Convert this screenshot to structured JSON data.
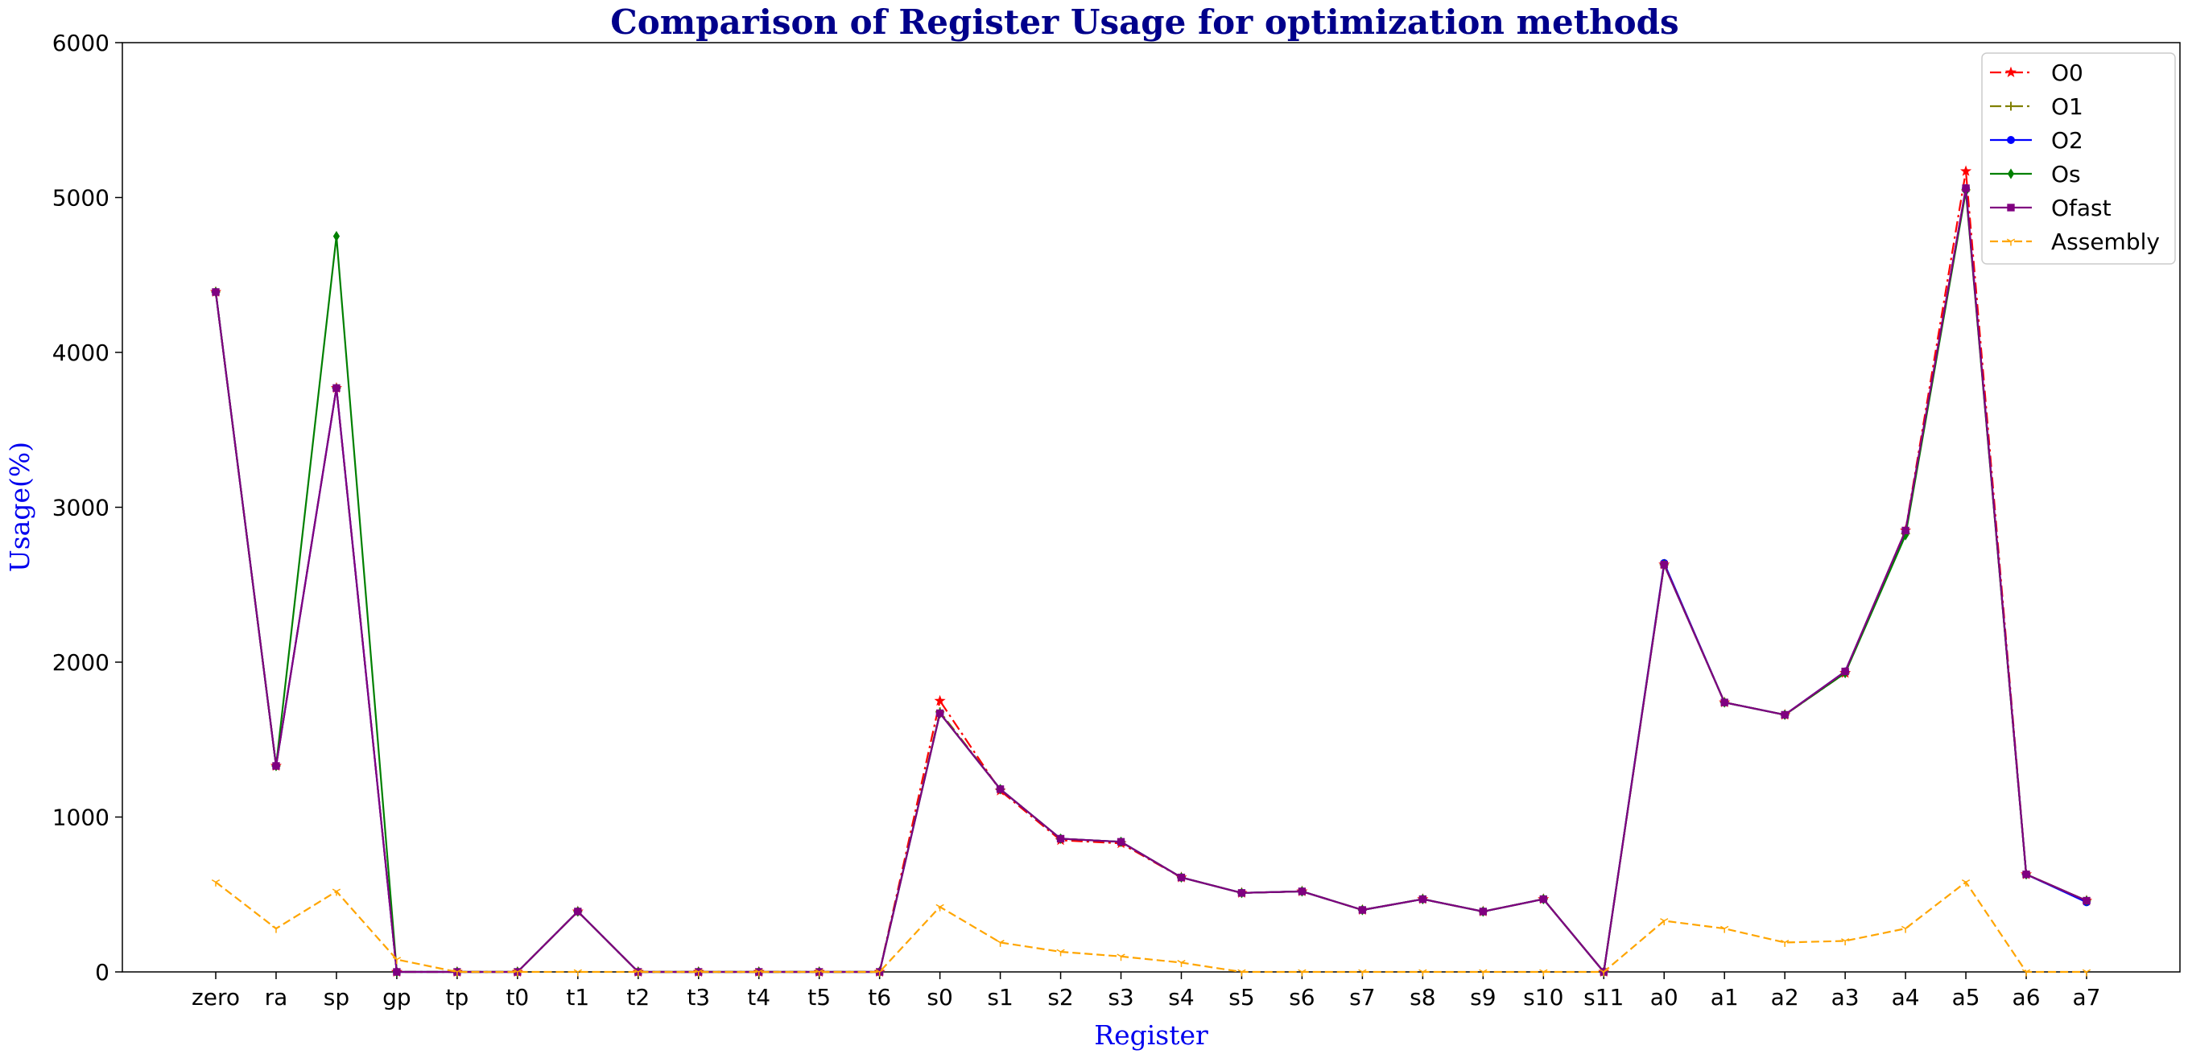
{
  "chart_data": {
    "type": "line",
    "title": "Comparison of Register Usage for optimization methods",
    "xlabel": "Register",
    "ylabel": "Usage(%)",
    "ylim": [
      0,
      6000
    ],
    "yticks": [
      0,
      1000,
      2000,
      3000,
      4000,
      5000,
      6000
    ],
    "grid": false,
    "legend_position": "top-right",
    "categories": [
      "zero",
      "ra",
      "sp",
      "gp",
      "tp",
      "t0",
      "t1",
      "t2",
      "t3",
      "t4",
      "t5",
      "t6",
      "s0",
      "s1",
      "s2",
      "s3",
      "s4",
      "s5",
      "s6",
      "s7",
      "s8",
      "s9",
      "s10",
      "s11",
      "a0",
      "a1",
      "a2",
      "a3",
      "a4",
      "a5",
      "a6",
      "a7"
    ],
    "series": [
      {
        "name": "O0",
        "color": "#ff0000",
        "dash": "dashdot",
        "marker": "star",
        "values": [
          4390,
          1330,
          3770,
          0,
          0,
          0,
          390,
          0,
          0,
          0,
          0,
          0,
          1750,
          1170,
          850,
          830,
          610,
          510,
          520,
          400,
          470,
          390,
          470,
          0,
          2630,
          1740,
          1660,
          1930,
          2850,
          5170,
          630,
          460
        ]
      },
      {
        "name": "O1",
        "color": "#808000",
        "dash": "dashdot",
        "marker": "plus",
        "values": [
          4390,
          1330,
          3770,
          0,
          0,
          0,
          390,
          0,
          0,
          0,
          0,
          0,
          1680,
          1180,
          860,
          840,
          610,
          510,
          520,
          400,
          470,
          390,
          470,
          0,
          2630,
          1740,
          1660,
          1930,
          2830,
          5050,
          630,
          460
        ]
      },
      {
        "name": "O2",
        "color": "#0000ff",
        "dash": "solid",
        "marker": "circle",
        "values": [
          4390,
          1330,
          3770,
          0,
          0,
          0,
          390,
          0,
          0,
          0,
          0,
          0,
          1670,
          1180,
          860,
          840,
          610,
          510,
          520,
          400,
          470,
          390,
          470,
          0,
          2640,
          1740,
          1660,
          1940,
          2840,
          5060,
          630,
          450
        ]
      },
      {
        "name": "Os",
        "color": "#008000",
        "dash": "solid",
        "marker": "diamond",
        "values": [
          4390,
          1330,
          4750,
          0,
          0,
          0,
          390,
          0,
          0,
          0,
          0,
          0,
          1670,
          1180,
          860,
          840,
          610,
          510,
          520,
          400,
          470,
          390,
          470,
          0,
          2630,
          1740,
          1660,
          1930,
          2820,
          5040,
          630,
          460
        ]
      },
      {
        "name": "Ofast",
        "color": "#800080",
        "dash": "solid",
        "marker": "square",
        "values": [
          4390,
          1330,
          3770,
          0,
          0,
          0,
          390,
          0,
          0,
          0,
          0,
          0,
          1670,
          1180,
          860,
          840,
          610,
          510,
          520,
          400,
          470,
          390,
          470,
          0,
          2630,
          1740,
          1660,
          1940,
          2850,
          5060,
          630,
          460
        ]
      },
      {
        "name": "Assembly",
        "color": "#ffa500",
        "dash": "dashed",
        "marker": "tri",
        "values": [
          580,
          280,
          520,
          80,
          0,
          0,
          0,
          0,
          0,
          0,
          0,
          0,
          420,
          190,
          130,
          100,
          60,
          0,
          0,
          0,
          0,
          0,
          0,
          0,
          330,
          280,
          190,
          200,
          280,
          580,
          0,
          0
        ]
      }
    ]
  }
}
